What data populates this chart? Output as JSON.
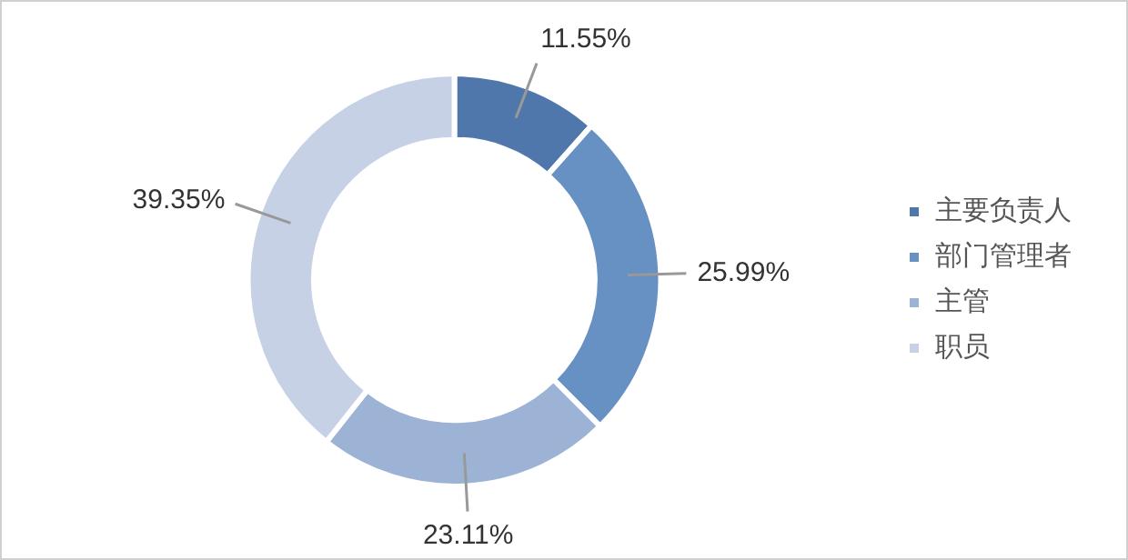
{
  "chart_data": {
    "type": "donut",
    "categories": [
      "主要负责人",
      "部门管理者",
      "主管",
      "职员"
    ],
    "values": [
      11.55,
      25.99,
      23.11,
      39.35
    ],
    "value_labels": [
      "11.55%",
      "25.99%",
      "23.11%",
      "39.35%"
    ],
    "colors": [
      "#5077ab",
      "#6790c3",
      "#9cb3d6",
      "#c6d1e6"
    ],
    "legend": "right"
  }
}
